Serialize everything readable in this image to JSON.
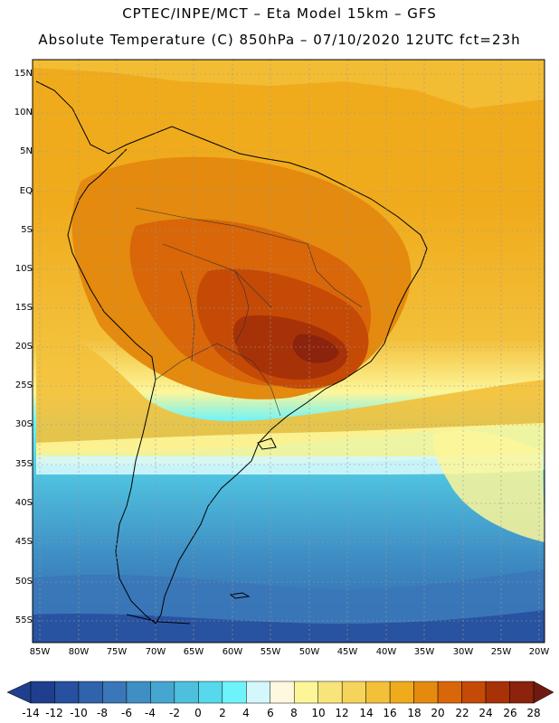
{
  "header": {
    "title_line1": "CPTEC/INPE/MCT –  Eta Model 15km – GFS",
    "title_line2": "Absolute Temperature (C) 850hPa – 07/10/2020 12UTC fct=23h"
  },
  "map": {
    "lat_labels": [
      "15N",
      "10N",
      "5N",
      "EQ",
      "5S",
      "10S",
      "15S",
      "20S",
      "25S",
      "30S",
      "35S",
      "40S",
      "45S",
      "50S",
      "55S"
    ],
    "lon_labels": [
      "85W",
      "80W",
      "75W",
      "70W",
      "65W",
      "60W",
      "55W",
      "50W",
      "45W",
      "40W",
      "35W",
      "30W",
      "25W",
      "20W"
    ]
  },
  "colorbar": {
    "labels": [
      "-14",
      "-12",
      "-10",
      "-8",
      "-6",
      "-4",
      "-2",
      "0",
      "2",
      "4",
      "6",
      "8",
      "10",
      "12",
      "14",
      "16",
      "18",
      "20",
      "22",
      "24",
      "26",
      "28"
    ],
    "colors": [
      "#1f3f8e",
      "#27509e",
      "#2f63ab",
      "#3a77b8",
      "#3f8ec4",
      "#45a6d0",
      "#4ec0de",
      "#56d9ec",
      "#6ef3fb",
      "#d4f7fb",
      "#fff8e0",
      "#fdf699",
      "#f8e57a",
      "#f6d35a",
      "#f3c03a",
      "#f0ab1c",
      "#e48a0e",
      "#d96608",
      "#c44a06",
      "#a83208",
      "#8c230c",
      "#6e1a10"
    ]
  }
}
